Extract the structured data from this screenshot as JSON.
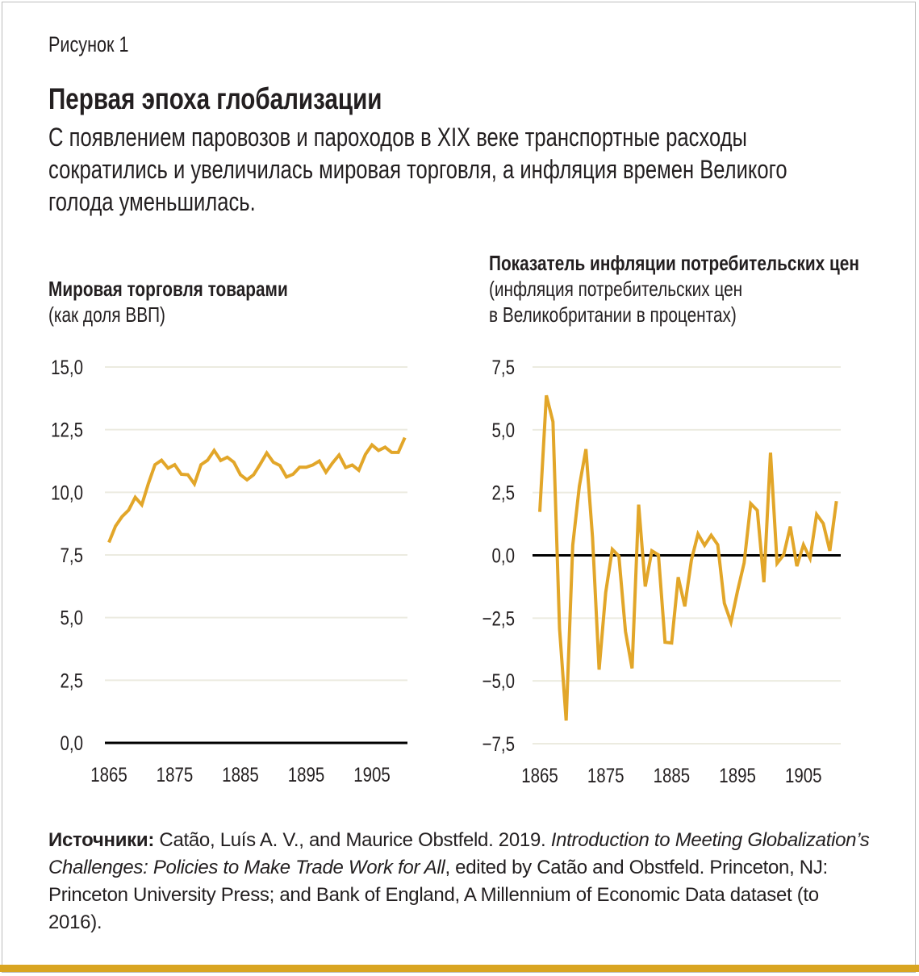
{
  "figure_label": "Рисунок 1",
  "title": "Первая эпоха глобализации",
  "subtitle": [
    "С появлением паровозов и пароходов в XIX веке транспортные расходы",
    "сократились и увеличилась мировая торговля, а инфляция времен Великого",
    "голода уменьшилась."
  ],
  "colors": {
    "line": "#e2a629",
    "baseline": "#000000",
    "grid": "#ecebe0",
    "bottom_bar": "#d9a521"
  },
  "chart_data": [
    {
      "type": "line",
      "title": "Мировая торговля товарами",
      "subtitle": [
        "(как доля ВВП)"
      ],
      "ylim": [
        0,
        15
      ],
      "yticks": [
        "15,0",
        "12,5",
        "10,0",
        "7,5",
        "5,0",
        "2,5",
        "0,0"
      ],
      "ytick_values": [
        15,
        12.5,
        10,
        7.5,
        5,
        2.5,
        0
      ],
      "xticks": [
        "1865",
        "1875",
        "1885",
        "1895",
        "1905"
      ],
      "xlim": [
        1865,
        1910
      ],
      "grid": true,
      "x": [
        1865,
        1866,
        1867,
        1868,
        1869,
        1870,
        1871,
        1872,
        1873,
        1874,
        1875,
        1876,
        1877,
        1878,
        1879,
        1880,
        1881,
        1882,
        1883,
        1884,
        1885,
        1886,
        1887,
        1888,
        1889,
        1890,
        1891,
        1892,
        1893,
        1894,
        1895,
        1896,
        1897,
        1898,
        1899,
        1900,
        1901,
        1902,
        1903,
        1904,
        1905,
        1906,
        1907,
        1908,
        1909,
        1910
      ],
      "values": [
        8.0,
        8.65,
        9.03,
        9.29,
        9.8,
        9.5,
        10.35,
        11.1,
        11.28,
        10.96,
        11.1,
        10.72,
        10.7,
        10.33,
        11.1,
        11.28,
        11.67,
        11.27,
        11.4,
        11.2,
        10.7,
        10.5,
        10.7,
        11.12,
        11.57,
        11.2,
        11.07,
        10.61,
        10.72,
        11.0,
        11.0,
        11.09,
        11.25,
        10.8,
        11.17,
        11.49,
        10.99,
        11.09,
        10.88,
        11.51,
        11.89,
        11.67,
        11.8,
        11.59,
        11.59,
        12.18
      ]
    },
    {
      "type": "line",
      "title": "Показатель инфляции потребительских цен",
      "subtitle": [
        "(инфляция потребительских цен",
        "в Великобритании в процентах)"
      ],
      "ylim": [
        -7.5,
        7.5
      ],
      "yticks": [
        "7,5",
        "5,0",
        "2,5",
        "0,0",
        "−2,5",
        "−5,0",
        "−7,5"
      ],
      "ytick_values": [
        7.5,
        5,
        2.5,
        0,
        -2.5,
        -5,
        -7.5
      ],
      "xticks": [
        "1865",
        "1875",
        "1885",
        "1895",
        "1905"
      ],
      "xlim": [
        1865,
        1910
      ],
      "grid": true,
      "x": [
        1865,
        1866,
        1867,
        1868,
        1869,
        1870,
        1871,
        1872,
        1873,
        1874,
        1875,
        1876,
        1877,
        1878,
        1879,
        1880,
        1881,
        1882,
        1883,
        1884,
        1885,
        1886,
        1887,
        1888,
        1889,
        1890,
        1891,
        1892,
        1893,
        1894,
        1895,
        1896,
        1897,
        1898,
        1899,
        1900,
        1901,
        1902,
        1903,
        1904,
        1905,
        1906,
        1907,
        1908,
        1909,
        1910
      ],
      "values": [
        1.73,
        6.37,
        5.32,
        -2.92,
        -6.58,
        0.4,
        2.75,
        4.23,
        0.72,
        -4.55,
        -1.48,
        0.24,
        -0.03,
        -3.03,
        -4.5,
        2.02,
        -1.24,
        0.18,
        0.02,
        -3.46,
        -3.49,
        -0.87,
        -2.03,
        -0.19,
        0.85,
        0.4,
        0.8,
        0.42,
        -1.91,
        -2.66,
        -1.42,
        -0.3,
        2.06,
        1.79,
        -1.07,
        4.09,
        -0.32,
        0.02,
        1.15,
        -0.43,
        0.42,
        -0.12,
        1.63,
        1.27,
        0.18,
        2.16
      ]
    }
  ],
  "source": {
    "label": "Источники:",
    "text1": " Catão, Luís A. V., and Maurice Obstfeld. 2019. ",
    "italic": "Introduction to Meeting Globalization’s Challenges: Policies to Make Trade Work for All",
    "text2": ", edited by Catão and Obstfeld. Princeton, NJ: Princeton University Press; and Bank of England, A Millennium of Economic Data dataset (to 2016)."
  }
}
